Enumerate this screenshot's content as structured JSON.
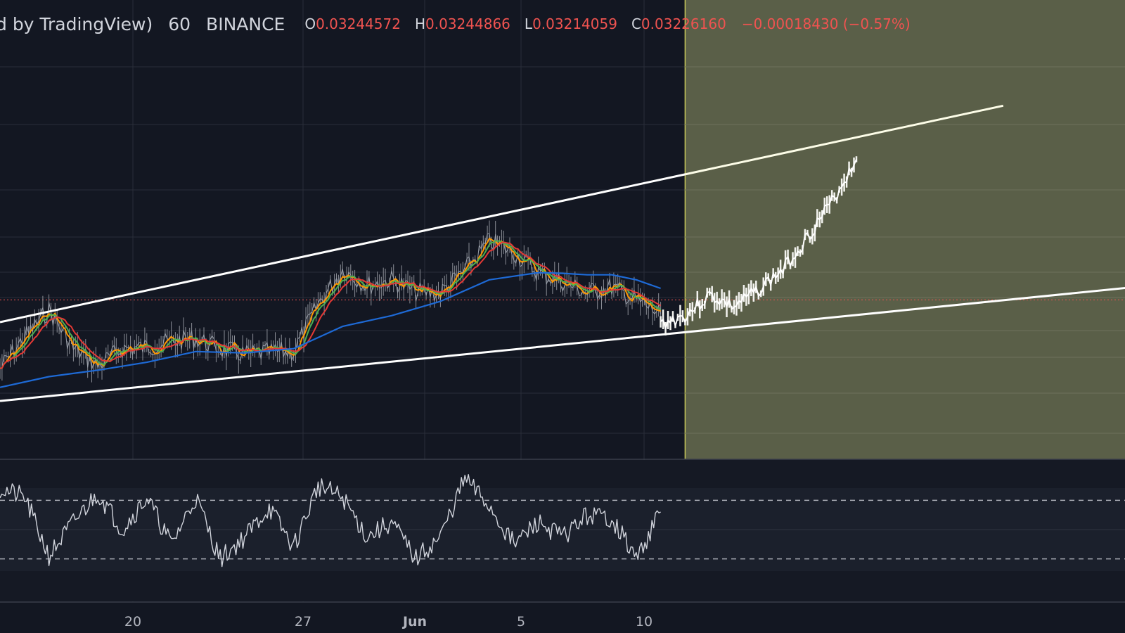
{
  "legend": {
    "title": "d by TradingView)",
    "interval": "60",
    "exchange": "BINANCE",
    "open_key": "O",
    "open": "0.03244572",
    "high_key": "H",
    "high": "0.03244866",
    "low_key": "L",
    "low": "0.03214059",
    "close_key": "C",
    "close": "0.03226160",
    "change": "−0.00018430 (−0.57%)"
  },
  "colors": {
    "background": "#131722",
    "grid": "#2a2e39",
    "projection_zone": "#5a5f48",
    "projection_border": "#c9c95a",
    "trendline": "#ffffff",
    "ema_fast": "#ff9800",
    "ema_mid": "#4caf50",
    "ema_slow": "#e53935",
    "ma_long": "#1e6ad6",
    "price_line": "#ef5350",
    "rsi": "#d1d4dc"
  },
  "chart_data": {
    "type": "line",
    "symbol_exchange": "BINANCE",
    "interval": "60",
    "x_ticks": [
      "20",
      "27",
      "Jun",
      "5",
      "10"
    ],
    "price_axis": "hidden",
    "price_scale_units": "relative",
    "series": [
      {
        "name": "",
        "kind": "price",
        "x": [
          0,
          1,
          2,
          3,
          4,
          5,
          6,
          7,
          8,
          9,
          10,
          11,
          12,
          13,
          14,
          15,
          16,
          17,
          18,
          19,
          20,
          21,
          22,
          23,
          24,
          25,
          26,
          27
        ],
        "values": [
          514,
          470,
          432,
          486,
          510,
          486,
          484,
          476,
          472,
          486,
          494,
          491,
          490,
          424,
          376,
          398,
          390,
          407,
          408,
          377,
          336,
          352,
          380,
          393,
          408,
          400,
          418,
          438
        ]
      },
      {
        "name": "",
        "kind": "projected_price",
        "x": [
          27,
          28,
          29,
          30,
          31,
          32,
          33,
          34,
          35
        ],
        "values": [
          452,
          440,
          412,
          428,
          404,
          376,
          330,
          282,
          222
        ]
      },
      {
        "name": "",
        "kind": "ma_long",
        "x": [
          0,
          2,
          4,
          6,
          8,
          10,
          12,
          14,
          16,
          18,
          20,
          22,
          23,
          24,
          25,
          26,
          27
        ],
        "values": [
          540,
          525,
          516,
          505,
          490,
          492,
          486,
          455,
          440,
          420,
          390,
          380,
          381,
          383,
          383,
          390,
          402
        ]
      },
      {
        "name": "",
        "kind": "rsi",
        "x": [
          0,
          1,
          2,
          3,
          4,
          5,
          6,
          7,
          8,
          9,
          10,
          11,
          12,
          13,
          14,
          15,
          16,
          17,
          18,
          19,
          20,
          21,
          22,
          23,
          24,
          25,
          26,
          27
        ],
        "values": [
          78,
          72,
          32,
          55,
          75,
          50,
          72,
          40,
          72,
          30,
          45,
          65,
          38,
          80,
          72,
          45,
          55,
          30,
          45,
          85,
          66,
          40,
          55,
          45,
          60,
          58,
          30,
          62
        ]
      }
    ],
    "annotations": {
      "channel_upper": {
        "from": [
          0,
          449
        ],
        "to": [
          28,
          243
        ]
      },
      "channel_lower": {
        "from": [
          0,
          559
        ],
        "to": [
          47,
          398
        ]
      },
      "projection_start_x": 28,
      "current_price_level": 418,
      "rsi_bands": [
        70,
        30
      ]
    }
  }
}
